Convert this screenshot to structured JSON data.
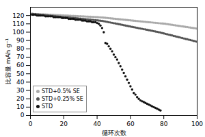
{
  "chart_data": {
    "type": "scatter",
    "title": "",
    "xlabel": "循环次数",
    "ylabel": "比容量 mAh g⁻¹",
    "xlim": [
      0,
      100
    ],
    "ylim": [
      0,
      130
    ],
    "xticks": [
      0,
      20,
      40,
      60,
      80,
      100
    ],
    "yticks": [
      0,
      10,
      20,
      30,
      40,
      50,
      60,
      70,
      80,
      90,
      100,
      110,
      120
    ],
    "grid": false,
    "legend": "lower left",
    "marker": "point",
    "series": [
      {
        "name": "STD+0.5% SE",
        "color": "#aaaaaa",
        "x": [
          1,
          2,
          3,
          4,
          5,
          6,
          7,
          8,
          9,
          10,
          11,
          12,
          13,
          14,
          15,
          16,
          17,
          18,
          19,
          20,
          21,
          22,
          23,
          24,
          25,
          26,
          27,
          28,
          29,
          30,
          31,
          32,
          33,
          34,
          35,
          36,
          37,
          38,
          39,
          40,
          41,
          42,
          43,
          44,
          45,
          46,
          47,
          48,
          49,
          50,
          51,
          52,
          53,
          54,
          55,
          56,
          57,
          58,
          59,
          60,
          61,
          62,
          63,
          64,
          65,
          66,
          67,
          68,
          69,
          70,
          71,
          72,
          73,
          74,
          75,
          76,
          77,
          78,
          79,
          80,
          81,
          82,
          83,
          84,
          85,
          86,
          87,
          88,
          89,
          90,
          91,
          92,
          93,
          94,
          95,
          96,
          97,
          98,
          99,
          100
        ],
        "values": [
          122,
          121.9,
          121.8,
          121.7,
          121.6,
          121.5,
          121.4,
          121.3,
          121.2,
          121.1,
          121.0,
          120.9,
          120.8,
          120.7,
          120.6,
          120.5,
          120.4,
          120.3,
          120.2,
          120.1,
          120.0,
          119.9,
          119.8,
          119.7,
          119.6,
          119.5,
          119.4,
          119.3,
          119.2,
          119.1,
          119.0,
          118.9,
          118.8,
          118.7,
          118.6,
          118.5,
          118.4,
          118.3,
          118.2,
          118.1,
          118.0,
          117.8,
          117.6,
          117.4,
          117.2,
          117.0,
          116.8,
          116.6,
          116.4,
          116.2,
          116.0,
          115.8,
          115.6,
          115.4,
          115.2,
          115.0,
          114.8,
          114.6,
          114.4,
          114.2,
          114.0,
          113.8,
          113.6,
          113.4,
          113.2,
          113.0,
          112.8,
          112.6,
          112.4,
          112.2,
          112.0,
          111.8,
          111.6,
          111.4,
          111.2,
          111.0,
          110.8,
          110.6,
          110.4,
          110.2,
          110.0,
          109.7,
          109.4,
          109.1,
          108.8,
          108.5,
          108.2,
          107.9,
          107.6,
          107.3,
          107.0,
          106.7,
          106.4,
          106.1,
          105.8,
          105.5,
          105.2,
          104.9,
          104.6,
          104.3
        ]
      },
      {
        "name": "STD+0.25% SE",
        "color": "#555555",
        "x": [
          1,
          2,
          3,
          4,
          5,
          6,
          7,
          8,
          9,
          10,
          11,
          12,
          13,
          14,
          15,
          16,
          17,
          18,
          19,
          20,
          21,
          22,
          23,
          24,
          25,
          26,
          27,
          28,
          29,
          30,
          31,
          32,
          33,
          34,
          35,
          36,
          37,
          38,
          39,
          40,
          41,
          42,
          43,
          44,
          45,
          46,
          47,
          48,
          49,
          50,
          51,
          52,
          53,
          54,
          55,
          56,
          57,
          58,
          59,
          60,
          61,
          62,
          63,
          64,
          65,
          66,
          67,
          68,
          69,
          70,
          71,
          72,
          73,
          74,
          75,
          76,
          77,
          78,
          79,
          80,
          81,
          82,
          83,
          84,
          85,
          86,
          87,
          88,
          89,
          90,
          91,
          92,
          93,
          94,
          95,
          96,
          97,
          98,
          99,
          100
        ],
        "values": [
          122,
          121.8,
          121.6,
          121.4,
          121.2,
          121.0,
          120.8,
          120.6,
          120.4,
          120.2,
          120.0,
          119.8,
          119.6,
          119.4,
          119.2,
          119.0,
          118.8,
          118.6,
          118.4,
          118.2,
          118.0,
          117.8,
          117.6,
          117.4,
          117.2,
          117.0,
          116.8,
          116.6,
          116.4,
          116.2,
          116.0,
          115.8,
          115.6,
          115.4,
          115.2,
          115.0,
          114.8,
          114.6,
          114.4,
          114.2,
          114.0,
          113.8,
          113.5,
          113.2,
          112.8,
          112.4,
          112.0,
          111.6,
          111.2,
          110.8,
          110.4,
          110.0,
          109.6,
          109.2,
          108.8,
          108.4,
          108.0,
          107.6,
          107.2,
          106.8,
          106.4,
          106.0,
          105.6,
          105.2,
          104.8,
          104.4,
          104.0,
          103.6,
          103.2,
          102.8,
          102.4,
          102.0,
          101.6,
          101.2,
          100.8,
          100.4,
          100.0,
          99.5,
          99.0,
          98.5,
          98.0,
          97.5,
          97.0,
          96.5,
          96.0,
          95.5,
          95.0,
          94.5,
          94.0,
          93.5,
          93.0,
          92.5,
          92.0,
          91.5,
          91.0,
          90.5,
          90.0,
          89.5,
          89.0,
          88.5
        ]
      },
      {
        "name": "STD",
        "color": "#111111",
        "x": [
          1,
          2,
          3,
          4,
          5,
          6,
          7,
          8,
          9,
          10,
          11,
          12,
          13,
          14,
          15,
          16,
          17,
          18,
          19,
          20,
          21,
          22,
          23,
          24,
          25,
          26,
          27,
          28,
          29,
          30,
          31,
          32,
          33,
          34,
          35,
          36,
          37,
          38,
          39,
          40,
          41,
          42,
          43,
          44,
          45,
          46,
          47,
          48,
          49,
          50,
          51,
          52,
          53,
          54,
          55,
          56,
          57,
          58,
          59,
          60,
          61,
          62,
          63,
          64,
          65,
          66,
          67,
          68,
          69,
          70,
          71,
          72,
          73,
          74,
          75,
          76,
          77,
          78
        ],
        "values": [
          121,
          121,
          121,
          120,
          120,
          120,
          120,
          120,
          119,
          119,
          119,
          119,
          119,
          118,
          118,
          118,
          118,
          118,
          117,
          117,
          117,
          117,
          116,
          116,
          116,
          116,
          115,
          115,
          115,
          115,
          114,
          114,
          114,
          113,
          113,
          113,
          112,
          112,
          112,
          111,
          110,
          108,
          105,
          100,
          87,
          86,
          83,
          80,
          77,
          73,
          70,
          67,
          63,
          59,
          55,
          51,
          47,
          43,
          39,
          35,
          31,
          27,
          25,
          22,
          20,
          18,
          17,
          16,
          15,
          14,
          13,
          12,
          11,
          10,
          9,
          8,
          7,
          6
        ]
      }
    ]
  }
}
